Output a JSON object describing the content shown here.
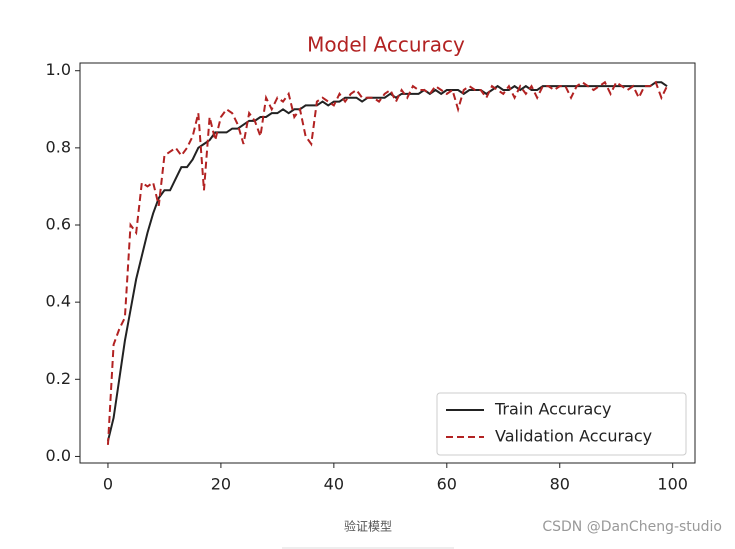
{
  "chart_data": {
    "type": "line",
    "title": "Model Accuracy",
    "x": [
      0,
      1,
      2,
      3,
      4,
      5,
      6,
      7,
      8,
      9,
      10,
      11,
      12,
      13,
      14,
      15,
      16,
      17,
      18,
      19,
      20,
      21,
      22,
      23,
      24,
      25,
      26,
      27,
      28,
      29,
      30,
      31,
      32,
      33,
      34,
      35,
      36,
      37,
      38,
      39,
      40,
      41,
      42,
      43,
      44,
      45,
      46,
      47,
      48,
      49,
      50,
      51,
      52,
      53,
      54,
      55,
      56,
      57,
      58,
      59,
      60,
      61,
      62,
      63,
      64,
      65,
      66,
      67,
      68,
      69,
      70,
      71,
      72,
      73,
      74,
      75,
      76,
      77,
      78,
      79,
      80,
      81,
      82,
      83,
      84,
      85,
      86,
      87,
      88,
      89,
      90,
      91,
      92,
      93,
      94,
      95,
      96,
      97,
      98,
      99
    ],
    "series": [
      {
        "name": "Train Accuracy",
        "color": "#222222",
        "dash": false,
        "values": [
          0.04,
          0.1,
          0.2,
          0.3,
          0.38,
          0.46,
          0.52,
          0.58,
          0.63,
          0.67,
          0.69,
          0.69,
          0.72,
          0.75,
          0.75,
          0.77,
          0.8,
          0.81,
          0.82,
          0.84,
          0.84,
          0.84,
          0.85,
          0.85,
          0.86,
          0.87,
          0.87,
          0.88,
          0.88,
          0.89,
          0.89,
          0.9,
          0.89,
          0.9,
          0.9,
          0.91,
          0.91,
          0.91,
          0.92,
          0.91,
          0.92,
          0.92,
          0.93,
          0.93,
          0.93,
          0.92,
          0.93,
          0.93,
          0.93,
          0.93,
          0.94,
          0.93,
          0.94,
          0.94,
          0.94,
          0.94,
          0.95,
          0.94,
          0.95,
          0.94,
          0.95,
          0.95,
          0.95,
          0.94,
          0.95,
          0.95,
          0.95,
          0.94,
          0.95,
          0.96,
          0.95,
          0.95,
          0.96,
          0.95,
          0.96,
          0.95,
          0.95,
          0.96,
          0.96,
          0.96,
          0.96,
          0.96,
          0.96,
          0.96,
          0.96,
          0.96,
          0.96,
          0.96,
          0.96,
          0.96,
          0.96,
          0.96,
          0.96,
          0.96,
          0.96,
          0.96,
          0.96,
          0.97,
          0.97,
          0.96
        ]
      },
      {
        "name": "Validation Accuracy",
        "color": "#b22222",
        "dash": true,
        "values": [
          0.03,
          0.29,
          0.33,
          0.36,
          0.6,
          0.58,
          0.71,
          0.7,
          0.71,
          0.65,
          0.78,
          0.79,
          0.8,
          0.78,
          0.8,
          0.83,
          0.89,
          0.69,
          0.88,
          0.82,
          0.88,
          0.9,
          0.89,
          0.86,
          0.81,
          0.89,
          0.87,
          0.83,
          0.93,
          0.9,
          0.93,
          0.92,
          0.94,
          0.88,
          0.9,
          0.83,
          0.81,
          0.92,
          0.93,
          0.92,
          0.91,
          0.94,
          0.92,
          0.94,
          0.95,
          0.93,
          0.93,
          0.93,
          0.92,
          0.94,
          0.95,
          0.92,
          0.95,
          0.93,
          0.96,
          0.95,
          0.95,
          0.94,
          0.96,
          0.95,
          0.94,
          0.95,
          0.9,
          0.95,
          0.96,
          0.95,
          0.95,
          0.93,
          0.96,
          0.95,
          0.94,
          0.96,
          0.93,
          0.96,
          0.94,
          0.96,
          0.93,
          0.96,
          0.96,
          0.95,
          0.96,
          0.96,
          0.93,
          0.96,
          0.97,
          0.96,
          0.95,
          0.96,
          0.97,
          0.94,
          0.97,
          0.96,
          0.95,
          0.96,
          0.93,
          0.96,
          0.96,
          0.97,
          0.93,
          0.96
        ]
      }
    ],
    "xlim": [
      -4.95,
      103.95
    ],
    "ylim": [
      -0.017,
      1.02
    ],
    "xticks": [
      0,
      20,
      40,
      60,
      80,
      100
    ],
    "yticks": [
      {
        "value": 0,
        "label": "0.0"
      },
      0.2,
      0.4,
      0.6,
      0.8,
      {
        "value": 1,
        "label": "1.0"
      }
    ],
    "legend": "lower right"
  },
  "caption": "验证模型",
  "watermark": "CSDN @DanCheng-studio"
}
